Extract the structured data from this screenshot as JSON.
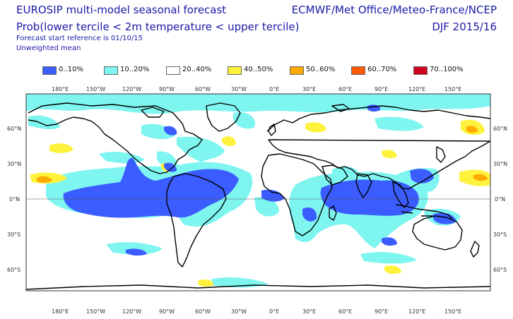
{
  "header": {
    "title_line1": "EUROSIP multi-model seasonal forecast",
    "title_line2": "Prob(lower tercile < 2m temperature < upper tercile)",
    "subtitle_line1": "Forecast start reference is 01/10/15",
    "subtitle_line2": "Unweighted mean",
    "source": "ECMWF/Met Office/Meteo-France/NCEP",
    "season": "DJF 2015/16"
  },
  "legend": [
    {
      "label": "0..10%",
      "color": "#3b5cff"
    },
    {
      "label": "10..20%",
      "color": "#7ff5f0"
    },
    {
      "label": "20..40%",
      "color": "#ffffff"
    },
    {
      "label": "40..50%",
      "color": "#fff23d"
    },
    {
      "label": "50..60%",
      "color": "#ffaa00"
    },
    {
      "label": "60..70%",
      "color": "#ff5a00"
    },
    {
      "label": "70..100%",
      "color": "#d2001e"
    }
  ],
  "axes": {
    "lon_labels": [
      "180°E",
      "150°W",
      "120°W",
      "90°W",
      "60°W",
      "30°W",
      "0°E",
      "30°E",
      "60°E",
      "90°E",
      "120°E",
      "150°E"
    ],
    "lat_labels_left": [
      "60°N",
      "30°N",
      "0°N",
      "30°S",
      "60°S"
    ],
    "lat_labels_right": [
      "60°N",
      "30°N",
      "0°N",
      "30°S",
      "60°S"
    ]
  },
  "colors": {
    "very_low": "#3b5cff",
    "low": "#7ff5f0",
    "neutral": "#ffffff",
    "slightly_high": "#fff23d",
    "high": "#ffaa00",
    "coastline": "#000000",
    "frame": "#333333"
  }
}
